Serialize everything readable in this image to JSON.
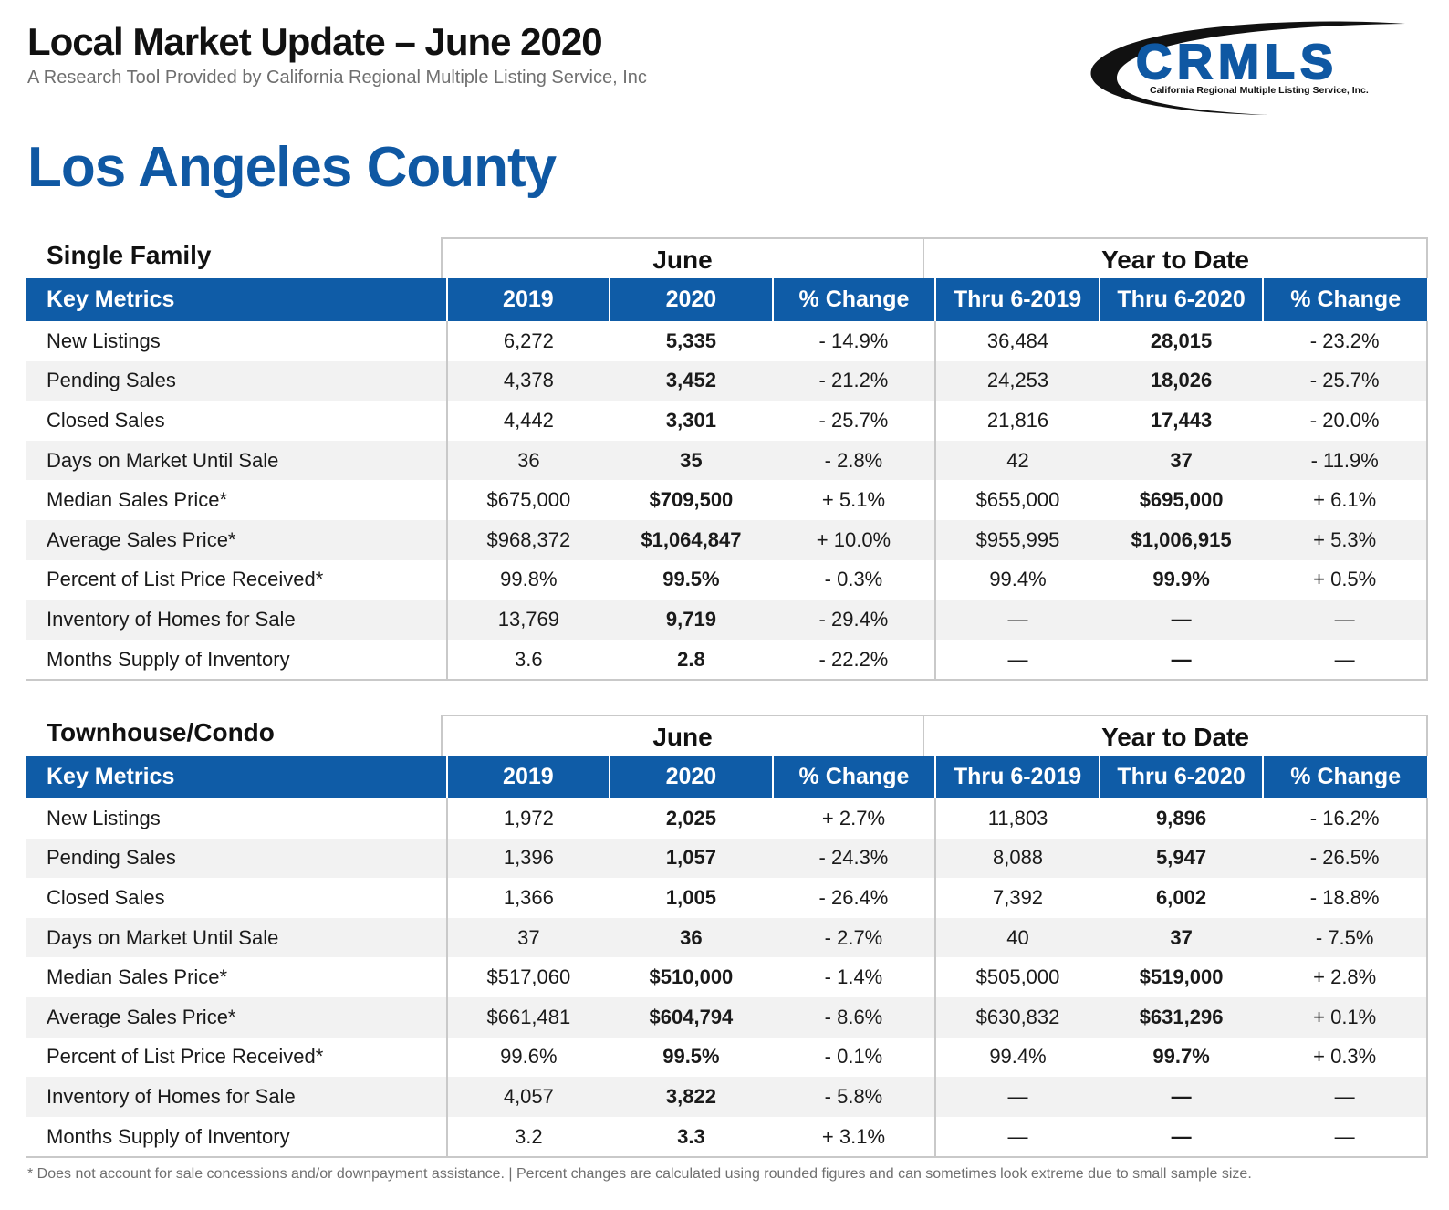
{
  "header": {
    "title": "Local Market Update – June 2020",
    "subtitle": "A Research Tool Provided by California Regional Multiple Listing Service, Inc"
  },
  "logo": {
    "acronym": "CRMLS",
    "full_name": "California Regional Multiple Listing Service, Inc.",
    "brand_color": "#0f58a3"
  },
  "county": "Los Angeles County",
  "columns": {
    "metric": "Key Metrics",
    "june_2019": "2019",
    "june_2020": "2020",
    "june_change": "% Change",
    "ytd_2019": "Thru 6-2019",
    "ytd_2020": "Thru 6-2020",
    "ytd_change": "% Change"
  },
  "group_headers": {
    "june": "June",
    "ytd": "Year to Date"
  },
  "sections": [
    {
      "label": "Single Family",
      "rows": [
        [
          "New Listings",
          "6,272",
          "5,335",
          "- 14.9%",
          "36,484",
          "28,015",
          "- 23.2%"
        ],
        [
          "Pending Sales",
          "4,378",
          "3,452",
          "- 21.2%",
          "24,253",
          "18,026",
          "- 25.7%"
        ],
        [
          "Closed Sales",
          "4,442",
          "3,301",
          "- 25.7%",
          "21,816",
          "17,443",
          "- 20.0%"
        ],
        [
          "Days on Market Until Sale",
          "36",
          "35",
          "- 2.8%",
          "42",
          "37",
          "- 11.9%"
        ],
        [
          "Median Sales Price*",
          "$675,000",
          "$709,500",
          "+ 5.1%",
          "$655,000",
          "$695,000",
          "+ 6.1%"
        ],
        [
          "Average Sales Price*",
          "$968,372",
          "$1,064,847",
          "+ 10.0%",
          "$955,995",
          "$1,006,915",
          "+ 5.3%"
        ],
        [
          "Percent of List Price Received*",
          "99.8%",
          "99.5%",
          "- 0.3%",
          "99.4%",
          "99.9%",
          "+ 0.5%"
        ],
        [
          "Inventory of Homes for Sale",
          "13,769",
          "9,719",
          "- 29.4%",
          "—",
          "—",
          "—"
        ],
        [
          "Months Supply of Inventory",
          "3.6",
          "2.8",
          "- 22.2%",
          "—",
          "—",
          "—"
        ]
      ]
    },
    {
      "label": "Townhouse/Condo",
      "rows": [
        [
          "New Listings",
          "1,972",
          "2,025",
          "+ 2.7%",
          "11,803",
          "9,896",
          "- 16.2%"
        ],
        [
          "Pending Sales",
          "1,396",
          "1,057",
          "- 24.3%",
          "8,088",
          "5,947",
          "- 26.5%"
        ],
        [
          "Closed Sales",
          "1,366",
          "1,005",
          "- 26.4%",
          "7,392",
          "6,002",
          "- 18.8%"
        ],
        [
          "Days on Market Until Sale",
          "37",
          "36",
          "- 2.7%",
          "40",
          "37",
          "- 7.5%"
        ],
        [
          "Median Sales Price*",
          "$517,060",
          "$510,000",
          "- 1.4%",
          "$505,000",
          "$519,000",
          "+ 2.8%"
        ],
        [
          "Average Sales Price*",
          "$661,481",
          "$604,794",
          "- 8.6%",
          "$630,832",
          "$631,296",
          "+ 0.1%"
        ],
        [
          "Percent of List Price Received*",
          "99.6%",
          "99.5%",
          "- 0.1%",
          "99.4%",
          "99.7%",
          "+ 0.3%"
        ],
        [
          "Inventory of Homes for Sale",
          "4,057",
          "3,822",
          "- 5.8%",
          "—",
          "—",
          "—"
        ],
        [
          "Months Supply of Inventory",
          "3.2",
          "3.3",
          "+ 3.1%",
          "—",
          "—",
          "—"
        ]
      ]
    }
  ],
  "footnote": "* Does not account for sale concessions and/or downpayment assistance. | Percent changes are calculated using rounded figures and can sometimes look extreme due to small sample size."
}
